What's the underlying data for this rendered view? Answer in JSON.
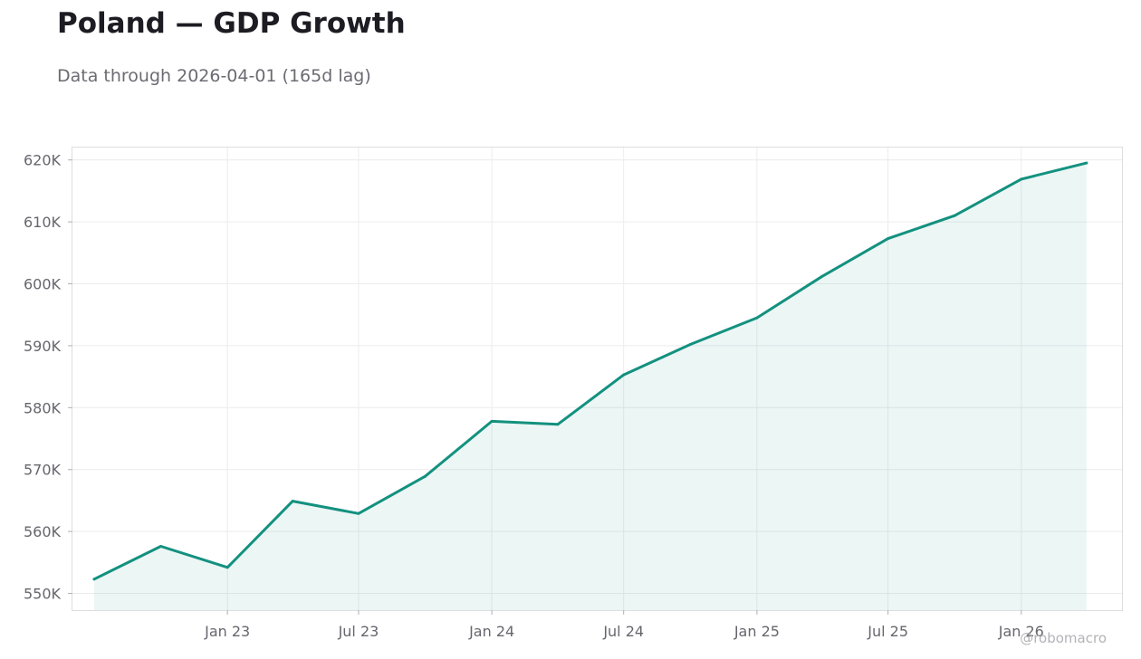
{
  "header": {
    "title": "Poland — GDP Growth",
    "subtitle": "Data through 2026-04-01 (165d lag)"
  },
  "watermark": "@robomacro",
  "colors": {
    "line": "#13917f",
    "fill": "#13917f",
    "grid": "#ececec",
    "frame": "#dedede"
  },
  "chart_data": {
    "type": "area",
    "title": "Poland — GDP Growth",
    "subtitle": "Data through 2026-04-01 (165d lag)",
    "xlabel": "",
    "ylabel": "",
    "x": [
      "2022-07-01",
      "2022-10-01",
      "2023-01-01",
      "2023-04-01",
      "2023-07-01",
      "2023-10-01",
      "2024-01-01",
      "2024-04-01",
      "2024-07-01",
      "2024-10-01",
      "2025-01-01",
      "2025-04-01",
      "2025-07-01",
      "2025-10-01",
      "2026-01-01",
      "2026-04-01"
    ],
    "series": [
      {
        "values": [
          552300,
          557600,
          554200,
          564900,
          562900,
          568900,
          577800,
          577300,
          585300,
          590200,
          594500,
          601200,
          607300,
          611000,
          616900,
          619500
        ]
      }
    ],
    "x_ticks": [
      {
        "date": "2023-01-01",
        "label": "Jan 23"
      },
      {
        "date": "2023-07-01",
        "label": "Jul 23"
      },
      {
        "date": "2024-01-01",
        "label": "Jan 24"
      },
      {
        "date": "2024-07-01",
        "label": "Jul 24"
      },
      {
        "date": "2025-01-01",
        "label": "Jan 25"
      },
      {
        "date": "2025-07-01",
        "label": "Jul 25"
      },
      {
        "date": "2026-01-01",
        "label": "Jan 26"
      }
    ],
    "y_ticks": [
      {
        "value": 550000,
        "label": "550K"
      },
      {
        "value": 560000,
        "label": "560K"
      },
      {
        "value": 570000,
        "label": "570K"
      },
      {
        "value": 580000,
        "label": "580K"
      },
      {
        "value": 590000,
        "label": "590K"
      },
      {
        "value": 600000,
        "label": "600K"
      },
      {
        "value": 610000,
        "label": "610K"
      },
      {
        "value": 620000,
        "label": "620K"
      }
    ],
    "xlim": [
      "2022-06-01",
      "2026-05-20"
    ],
    "ylim": [
      547300,
      622000
    ],
    "grid": true,
    "legend": "none"
  }
}
